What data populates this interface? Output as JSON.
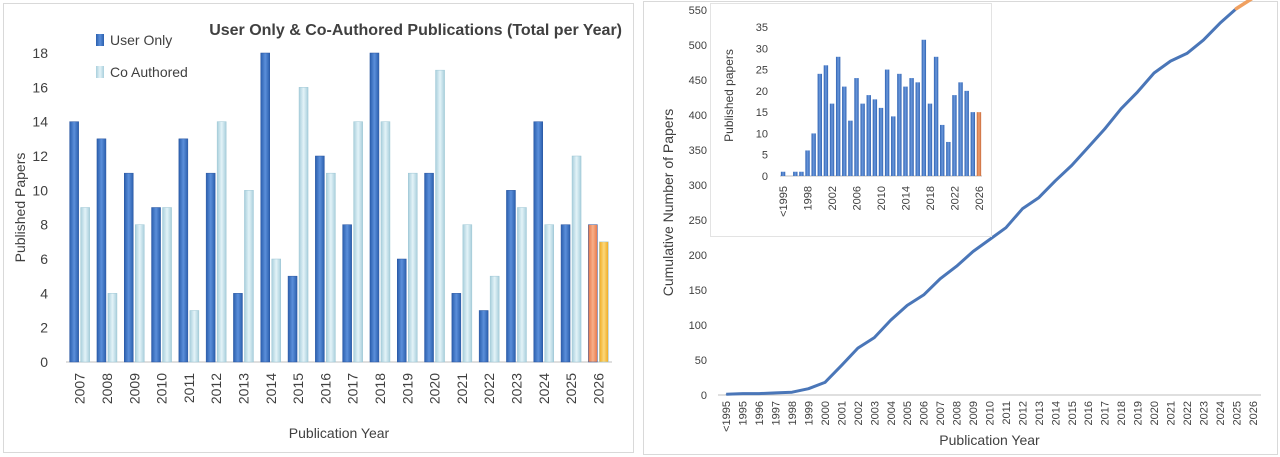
{
  "chart_data": [
    {
      "type": "bar",
      "title": "User Only & Co-Authored Publications (Total per Year)",
      "xlabel": "Publication Year",
      "ylabel": "Published Papers",
      "ylim": [
        0,
        18
      ],
      "yticks": [
        0,
        2,
        4,
        6,
        8,
        10,
        12,
        14,
        16,
        18
      ],
      "grid": false,
      "legend_position": "top-left",
      "categories": [
        "2007",
        "2008",
        "2009",
        "2010",
        "2011",
        "2012",
        "2013",
        "2014",
        "2015",
        "2016",
        "2017",
        "2018",
        "2019",
        "2020",
        "2021",
        "2022",
        "2023",
        "2024",
        "2025",
        "2026"
      ],
      "series": [
        {
          "name": "User Only",
          "color": "#3f72c4",
          "highlight_last_color": "#f0946a",
          "values": [
            14,
            13,
            11,
            9,
            13,
            11,
            4,
            18,
            5,
            12,
            8,
            18,
            6,
            11,
            4,
            3,
            10,
            14,
            8,
            8
          ]
        },
        {
          "name": "Co Authored",
          "color": "#bfe0ea",
          "highlight_last_color": "#f7c244",
          "values": [
            9,
            4,
            8,
            9,
            3,
            14,
            10,
            6,
            16,
            11,
            14,
            14,
            11,
            17,
            8,
            5,
            9,
            8,
            12,
            7
          ]
        }
      ]
    },
    {
      "type": "line",
      "xlabel": "Publication Year",
      "ylabel": "Cumulative Number of Papers",
      "ylim": [
        0,
        550
      ],
      "yticks": [
        0,
        50,
        100,
        150,
        200,
        250,
        300,
        350,
        400,
        450,
        500,
        550
      ],
      "grid": false,
      "line_color": "#4a76b8",
      "partial_color": "#f0a060",
      "x": [
        "<1995",
        "1995",
        "1996",
        "1997",
        "1998",
        "1999",
        "2000",
        "2001",
        "2002",
        "2003",
        "2004",
        "2005",
        "2006",
        "2007",
        "2008",
        "2009",
        "2010",
        "2011",
        "2012",
        "2013",
        "2014",
        "2015",
        "2016",
        "2017",
        "2018",
        "2019",
        "2020",
        "2021",
        "2022",
        "2023",
        "2024",
        "2025",
        "2026"
      ],
      "values": [
        1,
        2,
        2,
        3,
        4,
        9,
        18,
        42,
        67,
        82,
        107,
        128,
        143,
        166,
        184,
        205,
        222,
        239,
        266,
        282,
        306,
        328,
        354,
        380,
        409,
        433,
        460,
        477,
        488,
        507,
        531,
        552,
        567
      ]
    },
    {
      "type": "bar",
      "inset": true,
      "ylabel": "Published papers",
      "ylim": [
        0,
        35
      ],
      "yticks": [
        0,
        5,
        10,
        15,
        20,
        25,
        30,
        35
      ],
      "bar_color": "#3f72c4",
      "highlight_last_color": "#e08a58",
      "x_tick_labels": [
        "<1995",
        "1998",
        "2002",
        "2006",
        "2010",
        "2014",
        "2018",
        "2022",
        "2026"
      ],
      "categories": [
        "<1995",
        "1995",
        "1996",
        "1997",
        "1998",
        "1999",
        "2000",
        "2001",
        "2002",
        "2003",
        "2004",
        "2005",
        "2006",
        "2007",
        "2008",
        "2009",
        "2010",
        "2011",
        "2012",
        "2013",
        "2014",
        "2015",
        "2016",
        "2017",
        "2018",
        "2019",
        "2020",
        "2021",
        "2022",
        "2023",
        "2024",
        "2025",
        "2026"
      ],
      "values": [
        1,
        0,
        1,
        1,
        6,
        10,
        24,
        26,
        17,
        28,
        21,
        13,
        23,
        17,
        19,
        18,
        16,
        25,
        14,
        24,
        21,
        23,
        22,
        32,
        17,
        28,
        12,
        8,
        19,
        22,
        20,
        15,
        0
      ]
    }
  ]
}
